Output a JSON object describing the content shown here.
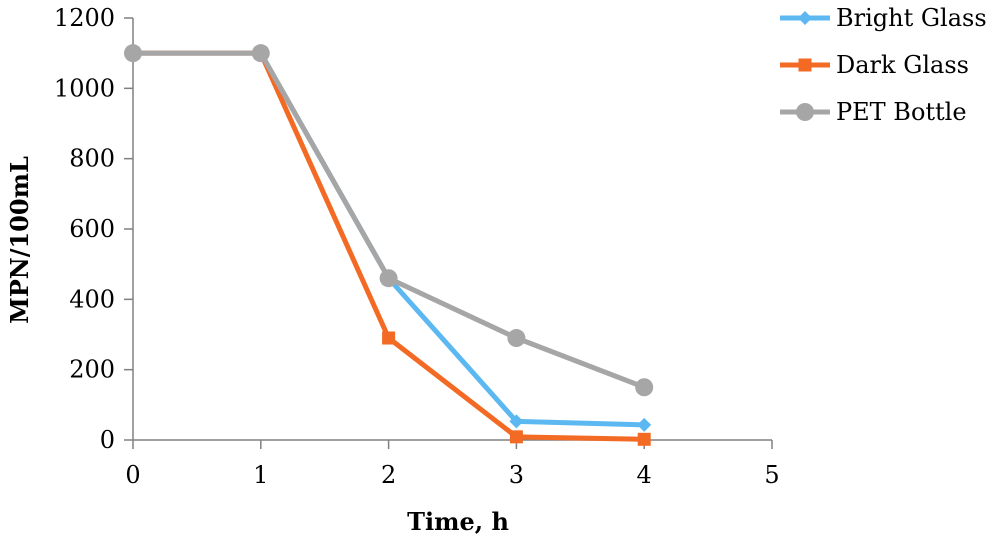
{
  "chart_data": {
    "type": "line",
    "title": "",
    "xlabel": "Time, h",
    "ylabel": "MPN/100mL",
    "xlim": [
      0,
      5
    ],
    "ylim": [
      0,
      1200
    ],
    "x_ticks": [
      0,
      1,
      2,
      3,
      4,
      5
    ],
    "y_ticks": [
      0,
      200,
      400,
      600,
      800,
      1000,
      1200
    ],
    "grid": false,
    "legend_position": "top-right",
    "series": [
      {
        "name": "Bright Glass",
        "color": "#5CB8F0",
        "marker": "diamond",
        "x": [
          0,
          1,
          2,
          3,
          4
        ],
        "y": [
          1100,
          1100,
          460,
          53,
          43
        ]
      },
      {
        "name": "Dark Glass",
        "color": "#F36A24",
        "marker": "square",
        "x": [
          0,
          1,
          2,
          3,
          4
        ],
        "y": [
          1100,
          1100,
          290,
          9,
          2
        ]
      },
      {
        "name": "PET Bottle",
        "color": "#A6A6A6",
        "marker": "circle",
        "x": [
          0,
          1,
          2,
          3,
          4
        ],
        "y": [
          1100,
          1100,
          460,
          290,
          150
        ]
      }
    ]
  }
}
